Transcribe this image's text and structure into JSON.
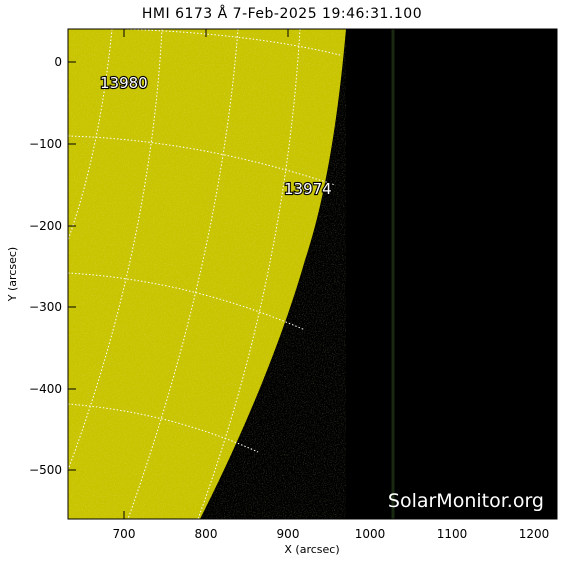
{
  "title": "HMI 6173 Å  7-Feb-2025 19:46:31.100",
  "x_axis": {
    "label": "X (arcsec)",
    "ticks": [
      "700",
      "800",
      "900",
      "1000",
      "1100",
      "1200"
    ]
  },
  "y_axis": {
    "label": "Y (arcsec)",
    "ticks": [
      "0",
      "−100",
      "−200",
      "−300",
      "−400",
      "−500"
    ]
  },
  "active_regions": [
    {
      "id": "13980"
    },
    {
      "id": "13974"
    }
  ],
  "watermark": "SolarMonitor.org",
  "colors": {
    "disk": "#c8c400",
    "space": "#000000",
    "grid": "#ffffff"
  }
}
